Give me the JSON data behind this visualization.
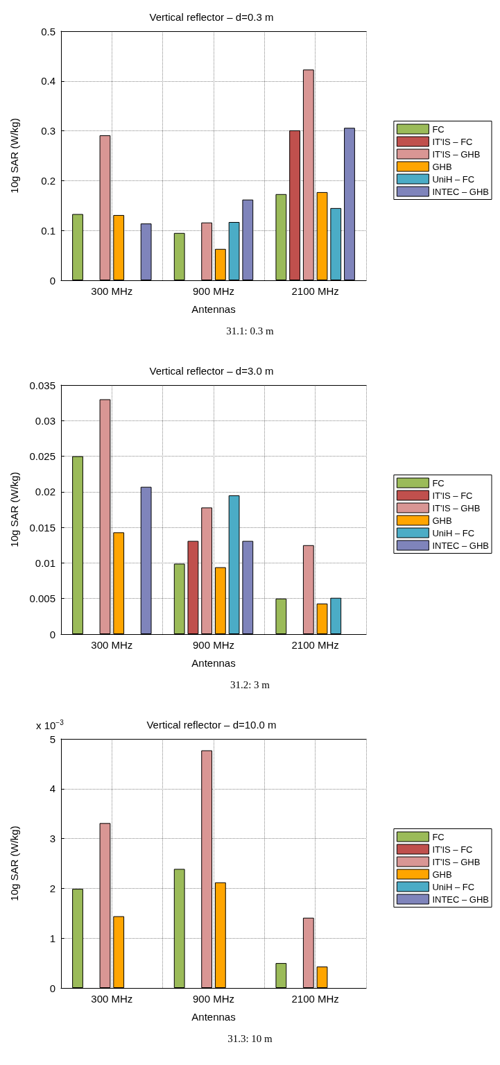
{
  "chart_data": [
    {
      "type": "bar",
      "title": "Vertical reflector – d=0.3 m",
      "xlabel": "Antennas",
      "ylabel": "10g SAR (W/kg)",
      "annotations": [
        "31.1:  0.3 m"
      ],
      "categories": [
        "300 MHz",
        "900 MHz",
        "2100 MHz"
      ],
      "series": [
        {
          "name": "FC",
          "color": "#9bbb59",
          "values": [
            0.133,
            0.095,
            0.173
          ]
        },
        {
          "name": "IT'IS – FC",
          "color": "#c0504d",
          "values": [
            null,
            null,
            0.301
          ]
        },
        {
          "name": "IT'IS – GHB",
          "color": "#d99694",
          "values": [
            0.291,
            0.116,
            0.423
          ]
        },
        {
          "name": "GHB",
          "color": "#ffa500",
          "values": [
            0.131,
            0.063,
            0.177
          ]
        },
        {
          "name": "UniH – FC",
          "color": "#4bacc6",
          "values": [
            null,
            0.117,
            0.145
          ]
        },
        {
          "name": "INTEC – GHB",
          "color": "#7f84bb",
          "values": [
            0.114,
            0.162,
            0.306
          ]
        }
      ],
      "ylim": [
        0,
        0.5
      ],
      "yticks": [
        0,
        0.1,
        0.2,
        0.3,
        0.4,
        0.5
      ],
      "grid": true,
      "legend": "right"
    },
    {
      "type": "bar",
      "title": "Vertical reflector – d=3.0 m",
      "xlabel": "Antennas",
      "ylabel": "10g SAR (W/kg)",
      "annotations": [
        "31.2:  3 m"
      ],
      "categories": [
        "300 MHz",
        "900 MHz",
        "2100 MHz"
      ],
      "series": [
        {
          "name": "FC",
          "color": "#9bbb59",
          "values": [
            0.025,
            0.0099,
            0.005
          ]
        },
        {
          "name": "IT'IS – FC",
          "color": "#c0504d",
          "values": [
            null,
            0.0131,
            null
          ]
        },
        {
          "name": "IT'IS – GHB",
          "color": "#d99694",
          "values": [
            0.033,
            0.0178,
            0.0125
          ]
        },
        {
          "name": "GHB",
          "color": "#ffa500",
          "values": [
            0.0143,
            0.0094,
            0.0043
          ]
        },
        {
          "name": "UniH – FC",
          "color": "#4bacc6",
          "values": [
            null,
            0.0195,
            0.0051
          ]
        },
        {
          "name": "INTEC – GHB",
          "color": "#7f84bb",
          "values": [
            0.0207,
            0.0131,
            null
          ]
        }
      ],
      "ylim": [
        0,
        0.035
      ],
      "yticks": [
        0,
        0.005,
        0.01,
        0.015,
        0.02,
        0.025,
        0.03,
        0.035
      ],
      "grid": true,
      "legend": "right"
    },
    {
      "type": "bar",
      "title": "Vertical reflector – d=10.0 m",
      "xlabel": "Antennas",
      "ylabel": "10g SAR (W/kg)",
      "annotations": [
        "x 10$^{−3}$",
        "31.3:  10 m"
      ],
      "categories": [
        "300 MHz",
        "900 MHz",
        "2100 MHz"
      ],
      "series": [
        {
          "name": "FC",
          "color": "#9bbb59",
          "values": [
            1.99,
            2.39,
            0.5
          ]
        },
        {
          "name": "IT'IS – FC",
          "color": "#c0504d",
          "values": [
            null,
            null,
            null
          ]
        },
        {
          "name": "IT'IS – GHB",
          "color": "#d99694",
          "values": [
            3.31,
            4.77,
            1.41
          ]
        },
        {
          "name": "GHB",
          "color": "#ffa500",
          "values": [
            1.44,
            2.12,
            0.43
          ]
        },
        {
          "name": "UniH – FC",
          "color": "#4bacc6",
          "values": [
            null,
            null,
            null
          ]
        },
        {
          "name": "INTEC – GHB",
          "color": "#7f84bb",
          "values": [
            null,
            null,
            null
          ]
        }
      ],
      "ylim": [
        0,
        5
      ],
      "yticks": [
        0,
        1,
        2,
        3,
        4,
        5
      ],
      "grid": true,
      "legend": "right"
    }
  ]
}
